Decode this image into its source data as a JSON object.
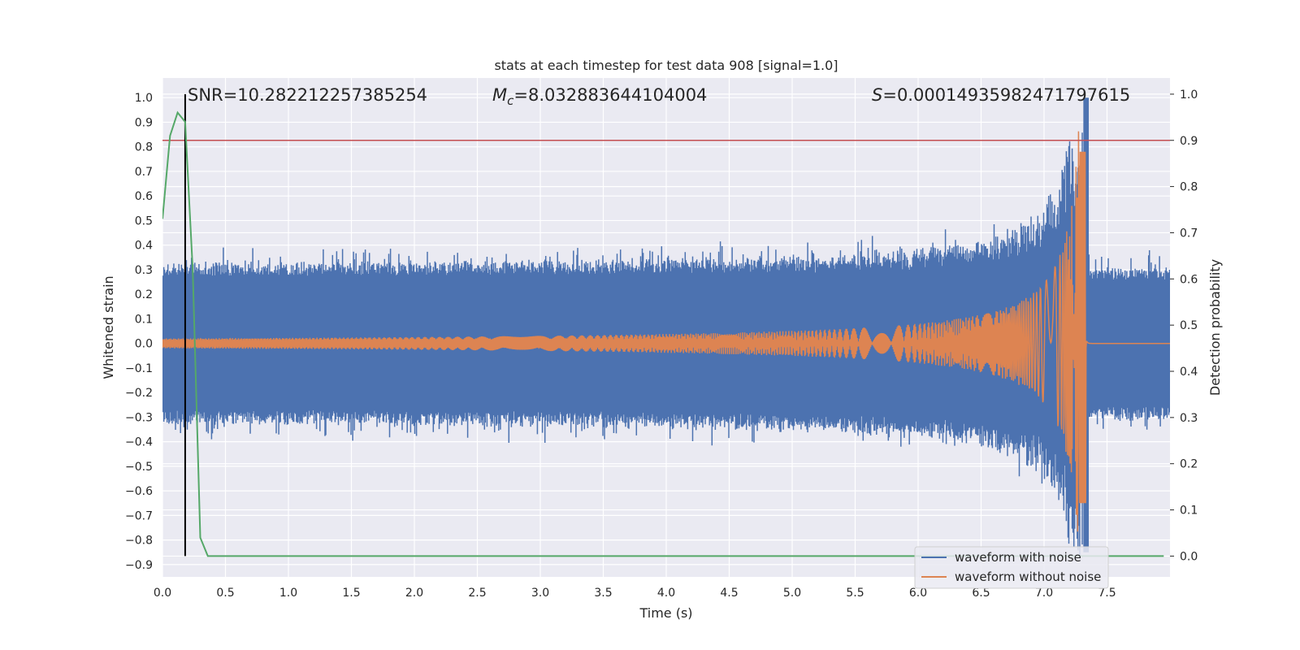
{
  "chart_data": {
    "type": "line",
    "title": "stats at each timestep for test data 908 [signal=1.0]",
    "xlabel": "Time (s)",
    "ylabel_left": "Whitened strain",
    "ylabel_right": "Detection probability",
    "xlim": [
      0,
      8.0
    ],
    "ylim_left": [
      -0.95,
      1.08
    ],
    "ylim_right": [
      -0.045,
      1.035
    ],
    "x_ticks": [
      "0.0",
      "0.5",
      "1.0",
      "1.5",
      "2.0",
      "2.5",
      "3.0",
      "3.5",
      "4.0",
      "4.5",
      "5.0",
      "5.5",
      "6.0",
      "6.5",
      "7.0",
      "7.5"
    ],
    "y_ticks_left": [
      "−0.9",
      "−0.8",
      "−0.7",
      "−0.6",
      "−0.5",
      "−0.4",
      "−0.3",
      "−0.2",
      "−0.1",
      "0.0",
      "0.1",
      "0.2",
      "0.3",
      "0.4",
      "0.5",
      "0.6",
      "0.7",
      "0.8",
      "0.9",
      "1.0"
    ],
    "y_ticks_right": [
      "0.0",
      "0.1",
      "0.2",
      "0.3",
      "0.4",
      "0.5",
      "0.6",
      "0.7",
      "0.8",
      "0.9",
      "1.0"
    ],
    "grid": true,
    "legend_position": "lower-right",
    "annotations": {
      "snr": "SNR=10.282212257385254",
      "mc_symbol": "M",
      "mc_sub": "c",
      "mc_value": "=8.032883644104004",
      "s_symbol": "S",
      "s_value": "=0.00014935982471797615"
    },
    "series": [
      {
        "name": "waveform with noise",
        "color": "#4c72b0",
        "axis": "left",
        "description_values": {
          "noise_band": [
            -0.3,
            0.3
          ],
          "peak_time": 7.33,
          "peak_value": 1.0,
          "trough_value": -0.85
        }
      },
      {
        "name": "waveform without noise",
        "color": "#dd8452",
        "axis": "left",
        "description_values": {
          "start_amplitude": 0.02,
          "merger_time": 7.33,
          "peak_value": 0.78,
          "trough_value": -0.65
        }
      }
    ],
    "detection_probability": {
      "color": "#55a868",
      "axis": "right",
      "x": [
        0.0,
        0.06,
        0.12,
        0.18,
        0.24,
        0.3,
        0.36,
        0.42,
        7.95
      ],
      "y": [
        0.73,
        0.91,
        0.96,
        0.94,
        0.62,
        0.04,
        0.0,
        0.0,
        0.0
      ]
    },
    "threshold": {
      "color": "#c44e52",
      "axis": "right",
      "value": 0.9
    },
    "trigger_time": {
      "color": "#000000",
      "x": 0.18
    }
  }
}
